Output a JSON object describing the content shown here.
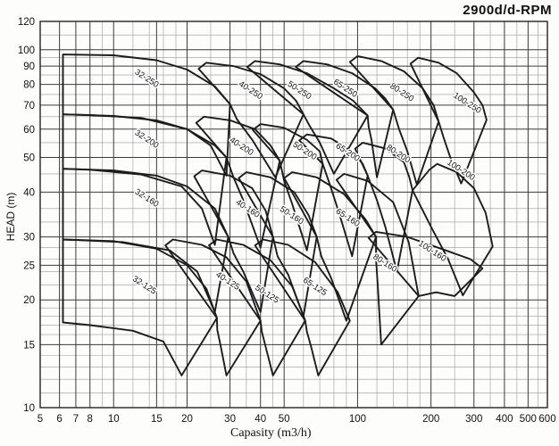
{
  "title": "2900d/d-RPM",
  "axes": {
    "x_label": "Capasity (m3/h)",
    "y_label": "HEAD (m)",
    "x_range": [
      5,
      600
    ],
    "y_range": [
      10,
      120
    ],
    "x_ticks": [
      5,
      6,
      7,
      8,
      10,
      15,
      20,
      30,
      40,
      50,
      100,
      200,
      300,
      400,
      500,
      600
    ],
    "y_ticks": [
      10,
      15,
      20,
      25,
      30,
      40,
      50,
      60,
      70,
      80,
      90,
      100,
      120
    ],
    "x_minor": [
      9,
      12,
      14,
      16,
      18,
      25,
      35,
      45,
      60,
      70,
      80,
      90,
      120,
      140,
      160,
      180,
      250,
      350,
      450,
      550
    ],
    "y_minor": [
      11,
      12,
      13,
      14,
      16,
      17,
      18,
      19,
      22,
      24,
      26,
      28,
      33,
      36,
      45,
      55,
      65,
      75,
      85,
      95,
      110
    ],
    "grid": true
  },
  "colors": {
    "major_grid": "#3a3a3a",
    "minor_grid": "#9a9a9a",
    "curve": "#1c1c1c",
    "text": "#111111",
    "background": "#fdfdfc"
  },
  "chart_data": {
    "type": "area",
    "title": "2900d/d-RPM",
    "xlabel": "Capasity (m3/h)",
    "ylabel": "HEAD (m)",
    "x_scale": "log",
    "y_scale": "log",
    "xlim": [
      5,
      600
    ],
    "ylim": [
      10,
      120
    ],
    "label_rotation_deg": 33,
    "envelopes": [
      {
        "label": "32-250",
        "label_pos": [
          13.5,
          82
        ],
        "points": [
          [
            6.2,
            97
          ],
          [
            10,
            96.5
          ],
          [
            15,
            93.5
          ],
          [
            20,
            88
          ],
          [
            26,
            79
          ],
          [
            30,
            70.5
          ],
          [
            29,
            44.5
          ],
          [
            25,
            54
          ],
          [
            20,
            60
          ],
          [
            13,
            64.5
          ],
          [
            8,
            65.7
          ],
          [
            6.2,
            66
          ]
        ]
      },
      {
        "label": "40-250",
        "label_pos": [
          36,
          76
        ],
        "points": [
          [
            22.3,
            88.5
          ],
          [
            24,
            92
          ],
          [
            31,
            90
          ],
          [
            40,
            85.5
          ],
          [
            50,
            78
          ],
          [
            56,
            72
          ],
          [
            60,
            66
          ],
          [
            46,
            44
          ],
          [
            37,
            56
          ],
          [
            32,
            64
          ],
          [
            30,
            70.5
          ]
        ]
      },
      {
        "label": "50-250",
        "label_pos": [
          57,
          76
        ],
        "points": [
          [
            35.3,
            89.5
          ],
          [
            38,
            93
          ],
          [
            48,
            91
          ],
          [
            62,
            86
          ],
          [
            80,
            78
          ],
          [
            96,
            72
          ],
          [
            110,
            65.5
          ],
          [
            80,
            45
          ],
          [
            70,
            55
          ],
          [
            63,
            62
          ],
          [
            60,
            66
          ]
        ]
      },
      {
        "label": "65-250",
        "label_pos": [
          88,
          77
        ],
        "points": [
          [
            55.8,
            89.5
          ],
          [
            60,
            93
          ],
          [
            75,
            91
          ],
          [
            95,
            86
          ],
          [
            118,
            78
          ],
          [
            130,
            73
          ],
          [
            140,
            68
          ],
          [
            120,
            44
          ],
          [
            114,
            56
          ],
          [
            111,
            61
          ],
          [
            110,
            65.5
          ]
        ]
      },
      {
        "label": "80-250",
        "label_pos": [
          150,
          75
        ],
        "points": [
          [
            93,
            92.4
          ],
          [
            100,
            96
          ],
          [
            125,
            93
          ],
          [
            155,
            87
          ],
          [
            185,
            78
          ],
          [
            205,
            70
          ],
          [
            215,
            63
          ],
          [
            175,
            42
          ],
          [
            160,
            52
          ],
          [
            148,
            60
          ],
          [
            140,
            68
          ]
        ]
      },
      {
        "label": "100-250",
        "label_pos": [
          278,
          70
        ],
        "points": [
          [
            165,
            91.4
          ],
          [
            177,
            95
          ],
          [
            215,
            92
          ],
          [
            255,
            86
          ],
          [
            300,
            76
          ],
          [
            325,
            70
          ],
          [
            338,
            63.7
          ],
          [
            266,
            42.3
          ],
          [
            240,
            50
          ],
          [
            225,
            57
          ],
          [
            215,
            63
          ]
        ]
      },
      {
        "label": "32-200",
        "label_pos": [
          13.5,
          55.5
        ],
        "points": [
          [
            6.2,
            66
          ],
          [
            10,
            65.3
          ],
          [
            15,
            63.5
          ],
          [
            20,
            60
          ],
          [
            26,
            54
          ],
          [
            29,
            50
          ],
          [
            26,
            28.5
          ],
          [
            23,
            36
          ],
          [
            19,
            41.5
          ],
          [
            13,
            44.8
          ],
          [
            8,
            46.2
          ],
          [
            6.2,
            46.5
          ]
        ]
      },
      {
        "label": "40-200",
        "label_pos": [
          33,
          53
        ],
        "points": [
          [
            21.8,
            62.5
          ],
          [
            23.5,
            65
          ],
          [
            30,
            63.5
          ],
          [
            38,
            60
          ],
          [
            44,
            54
          ],
          [
            48,
            49
          ],
          [
            40,
            28
          ],
          [
            34,
            38
          ],
          [
            31,
            44
          ],
          [
            29,
            50
          ]
        ]
      },
      {
        "label": "50-200",
        "label_pos": [
          60,
          51.5
        ],
        "points": [
          [
            37.2,
            59.7
          ],
          [
            40,
            62
          ],
          [
            50,
            60.5
          ],
          [
            62,
            56
          ],
          [
            70,
            52
          ],
          [
            72,
            48
          ],
          [
            62,
            27.5
          ],
          [
            54,
            37
          ],
          [
            50,
            43
          ],
          [
            48,
            49
          ]
        ]
      },
      {
        "label": "65-200",
        "label_pos": [
          90,
          51
        ],
        "points": [
          [
            57.7,
            55.8
          ],
          [
            62,
            58
          ],
          [
            78,
            56.5
          ],
          [
            95,
            52
          ],
          [
            105,
            48
          ],
          [
            110,
            44.5
          ],
          [
            95,
            26.5
          ],
          [
            84,
            35
          ],
          [
            77,
            42
          ],
          [
            72,
            48
          ]
        ]
      },
      {
        "label": "80-200",
        "label_pos": [
          145,
          50.5
        ],
        "points": [
          [
            97.7,
            52.9
          ],
          [
            105,
            55
          ],
          [
            130,
            53
          ],
          [
            155,
            48.5
          ],
          [
            163,
            44
          ],
          [
            168,
            40.5
          ],
          [
            145,
            24
          ],
          [
            130,
            32
          ],
          [
            120,
            38
          ],
          [
            110,
            44.5
          ]
        ]
      },
      {
        "label": "100-200",
        "label_pos": [
          262,
          45.5
        ],
        "points": [
          [
            197,
            46.2
          ],
          [
            212,
            48
          ],
          [
            255,
            45.5
          ],
          [
            300,
            41
          ],
          [
            335,
            35
          ],
          [
            358,
            28.2
          ],
          [
            270,
            20.6
          ],
          [
            235,
            26
          ],
          [
            200,
            32
          ],
          [
            168,
            40.5
          ]
        ]
      },
      {
        "label": "32-160",
        "label_pos": [
          13.5,
          38
        ],
        "points": [
          [
            6.2,
            46.5
          ],
          [
            10,
            46
          ],
          [
            15,
            44.5
          ],
          [
            20,
            41.5
          ],
          [
            26,
            36
          ],
          [
            29.5,
            30
          ],
          [
            26,
            18.5
          ],
          [
            22,
            24
          ],
          [
            17,
            27.5
          ],
          [
            11,
            29
          ],
          [
            7,
            29.4
          ],
          [
            6.2,
            29.5
          ]
        ]
      },
      {
        "label": "40-160",
        "label_pos": [
          35,
          35.5
        ],
        "points": [
          [
            21.4,
            44.3
          ],
          [
            23,
            46
          ],
          [
            30,
            44.5
          ],
          [
            37,
            41
          ],
          [
            42,
            35.5
          ],
          [
            45,
            30
          ],
          [
            40,
            18.5
          ],
          [
            34,
            24
          ],
          [
            31,
            27
          ],
          [
            29.5,
            30
          ]
        ]
      },
      {
        "label": "50-160",
        "label_pos": [
          53,
          34
        ],
        "points": [
          [
            32.6,
            43.8
          ],
          [
            35,
            45.5
          ],
          [
            44,
            44
          ],
          [
            55,
            40
          ],
          [
            63,
            34.5
          ],
          [
            68,
            30
          ],
          [
            60,
            18
          ],
          [
            52,
            23.5
          ],
          [
            47,
            26.5
          ],
          [
            45,
            30
          ]
        ]
      },
      {
        "label": "65-160",
        "label_pos": [
          90,
          33.5
        ],
        "points": [
          [
            50,
            43.8
          ],
          [
            54,
            45.5
          ],
          [
            68,
            44
          ],
          [
            88,
            39.5
          ],
          [
            108,
            33.5
          ],
          [
            119,
            30
          ],
          [
            90,
            17.5
          ],
          [
            78,
            23
          ],
          [
            71,
            26.5
          ],
          [
            68,
            30
          ]
        ]
      },
      {
        "label": "80-160",
        "label_pos": [
          128,
          25
        ],
        "points": [
          [
            82,
            43.3
          ],
          [
            88,
            45
          ],
          [
            110,
            43
          ],
          [
            140,
            37.5
          ],
          [
            162,
            29
          ],
          [
            178,
            20.5
          ],
          [
            125,
            15
          ],
          [
            121,
            22
          ],
          [
            119,
            26
          ],
          [
            119,
            30
          ]
        ]
      },
      {
        "label": "100-160",
        "label_pos": [
          200,
          27
        ],
        "points": [
          [
            111,
            29.8
          ],
          [
            119,
            31
          ],
          [
            160,
            30
          ],
          [
            230,
            27.5
          ],
          [
            290,
            26
          ],
          [
            325,
            24.5
          ],
          [
            250,
            20.5
          ],
          [
            210,
            21
          ],
          [
            178,
            20.5
          ]
        ]
      },
      {
        "label": "32-125",
        "label_pos": [
          13.2,
          21.7
        ],
        "points": [
          [
            6.2,
            29.5
          ],
          [
            10,
            29.2
          ],
          [
            15,
            27.8
          ],
          [
            20,
            25
          ],
          [
            24,
            21.5
          ],
          [
            26.5,
            17.8
          ],
          [
            19,
            12.3
          ],
          [
            16,
            15.3
          ],
          [
            12,
            16.4
          ],
          [
            8,
            17
          ],
          [
            6.2,
            17.3
          ]
        ]
      },
      {
        "label": "40-125",
        "label_pos": [
          29,
          22.3
        ],
        "points": [
          [
            16.3,
            28.4
          ],
          [
            17.5,
            29.5
          ],
          [
            23,
            28.5
          ],
          [
            29,
            26.3
          ],
          [
            35,
            22.5
          ],
          [
            40,
            17.5
          ],
          [
            29,
            12.3
          ],
          [
            27.5,
            14.8
          ],
          [
            26.6,
            16.5
          ],
          [
            26.5,
            17.8
          ]
        ]
      },
      {
        "label": "50-125",
        "label_pos": [
          42,
          20.5
        ],
        "points": [
          [
            24.6,
            28.4
          ],
          [
            26.5,
            29.5
          ],
          [
            34,
            28.5
          ],
          [
            44,
            25.8
          ],
          [
            54,
            21.8
          ],
          [
            61,
            17.5
          ],
          [
            45,
            12.3
          ],
          [
            42,
            14.8
          ],
          [
            40.5,
            16.3
          ],
          [
            40,
            17.5
          ]
        ]
      },
      {
        "label": "65-125",
        "label_pos": [
          66,
          21.5
        ],
        "points": [
          [
            38,
            28.4
          ],
          [
            41,
            29.5
          ],
          [
            52,
            28.5
          ],
          [
            67,
            25.5
          ],
          [
            83,
            21
          ],
          [
            93,
            17.5
          ],
          [
            69,
            12.3
          ],
          [
            64.5,
            14.8
          ],
          [
            62,
            16.3
          ],
          [
            61,
            17.5
          ]
        ]
      }
    ]
  }
}
